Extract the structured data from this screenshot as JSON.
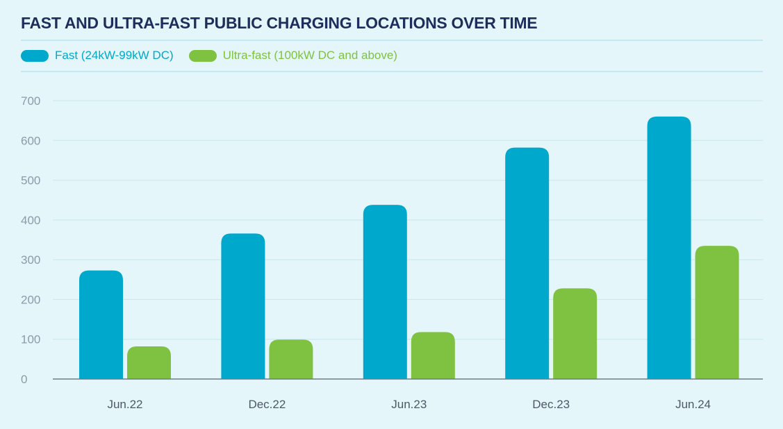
{
  "colors": {
    "background": "#e4f6fa",
    "title": "#1d2d5c",
    "fast": "#00a8cc",
    "ultra": "#7fc241",
    "grid": "#c8e6ee",
    "axis": "#6e7b88"
  },
  "chart_data": {
    "type": "bar",
    "title": "FAST AND ULTRA-FAST PUBLIC CHARGING LOCATIONS OVER TIME",
    "xlabel": "",
    "ylabel": "",
    "categories": [
      "Jun.22",
      "Dec.22",
      "Jun.23",
      "Dec.23",
      "Jun.24"
    ],
    "series": [
      {
        "name": "Fast (24kW-99kW DC)",
        "color": "#00a8cc",
        "values": [
          273,
          366,
          438,
          582,
          660
        ]
      },
      {
        "name": "Ultra-fast (100kW DC and above)",
        "color": "#7fc241",
        "values": [
          82,
          99,
          118,
          228,
          335
        ]
      }
    ],
    "ylim": [
      0,
      700
    ],
    "yticks": [
      0,
      100,
      200,
      300,
      400,
      500,
      600,
      700
    ],
    "grid": true,
    "legend_position": "top-left"
  }
}
